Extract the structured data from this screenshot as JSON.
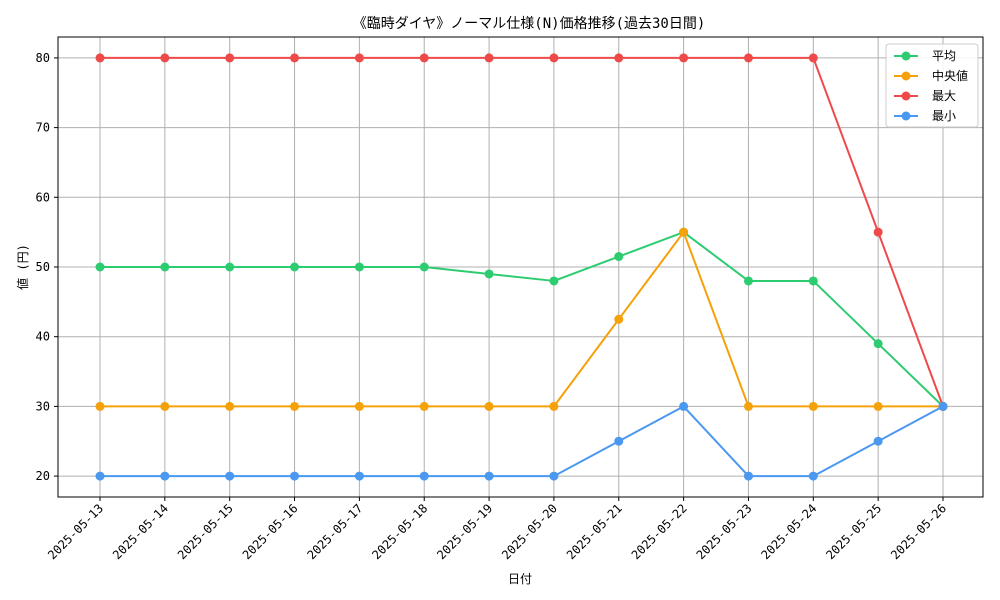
{
  "chart_data": {
    "type": "line",
    "title": "《臨時ダイヤ》ノーマル仕様(N)価格推移(過去30日間)",
    "xlabel": "日付",
    "ylabel": "値 (円)",
    "ylim": [
      17,
      83
    ],
    "yticks": [
      20,
      30,
      40,
      50,
      60,
      70,
      80
    ],
    "grid": true,
    "legend_position": "top-right",
    "categories": [
      "2025-05-13",
      "2025-05-14",
      "2025-05-15",
      "2025-05-16",
      "2025-05-17",
      "2025-05-18",
      "2025-05-19",
      "2025-05-20",
      "2025-05-21",
      "2025-05-22",
      "2025-05-23",
      "2025-05-24",
      "2025-05-25",
      "2025-05-26"
    ],
    "series": [
      {
        "name": "平均",
        "color": "#2ecc71",
        "values": [
          50,
          50,
          50,
          50,
          50,
          50,
          49,
          48,
          51.5,
          55,
          48,
          48,
          39,
          30
        ]
      },
      {
        "name": "中央値",
        "color": "#f5a10a",
        "values": [
          30,
          30,
          30,
          30,
          30,
          30,
          30,
          30,
          42.5,
          55,
          30,
          30,
          30,
          30
        ]
      },
      {
        "name": "最大",
        "color": "#ef4a4a",
        "values": [
          80,
          80,
          80,
          80,
          80,
          80,
          80,
          80,
          80,
          80,
          80,
          80,
          55,
          30
        ]
      },
      {
        "name": "最小",
        "color": "#4a98f0",
        "values": [
          20,
          20,
          20,
          20,
          20,
          20,
          20,
          20,
          25,
          30,
          20,
          20,
          25,
          30
        ]
      }
    ]
  }
}
